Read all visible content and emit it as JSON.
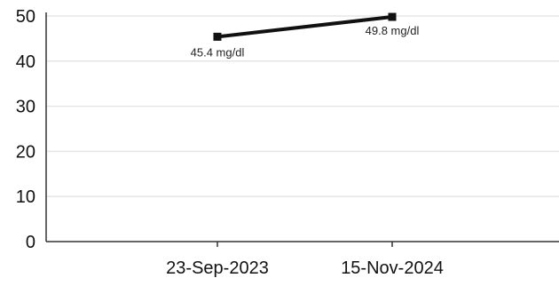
{
  "chart_data": {
    "type": "line",
    "categories": [
      "23-Sep-2023",
      "15-Nov-2024"
    ],
    "series": [
      {
        "values": [
          45.4,
          49.8
        ],
        "data_labels": [
          "45.4 mg/dl",
          "49.8 mg/dl"
        ]
      }
    ],
    "ylim": [
      0,
      50
    ],
    "yticks": [
      "0",
      "10",
      "20",
      "30",
      "40",
      "50"
    ],
    "grid": true,
    "legend": "none"
  },
  "colors": {
    "line": "#111111",
    "axis": "#333333",
    "grid": "#e6e6e6"
  }
}
